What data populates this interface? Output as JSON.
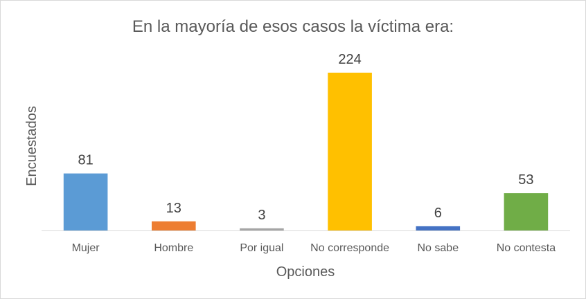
{
  "chart_data": {
    "type": "bar",
    "title": "En la mayoría de esos casos la víctima era:",
    "xlabel": "Opciones",
    "ylabel": "Encuestados",
    "categories": [
      "Mujer",
      "Hombre",
      "Por igual",
      "No corresponde",
      "No sabe",
      "No contesta"
    ],
    "values": [
      81,
      13,
      3,
      224,
      6,
      53
    ],
    "colors": [
      "#5b9bd5",
      "#ed7d31",
      "#a5a5a5",
      "#ffc000",
      "#4472c4",
      "#70ad47"
    ],
    "ylim": [
      0,
      224
    ],
    "grid": false,
    "legend": "none",
    "data_labels": true
  }
}
